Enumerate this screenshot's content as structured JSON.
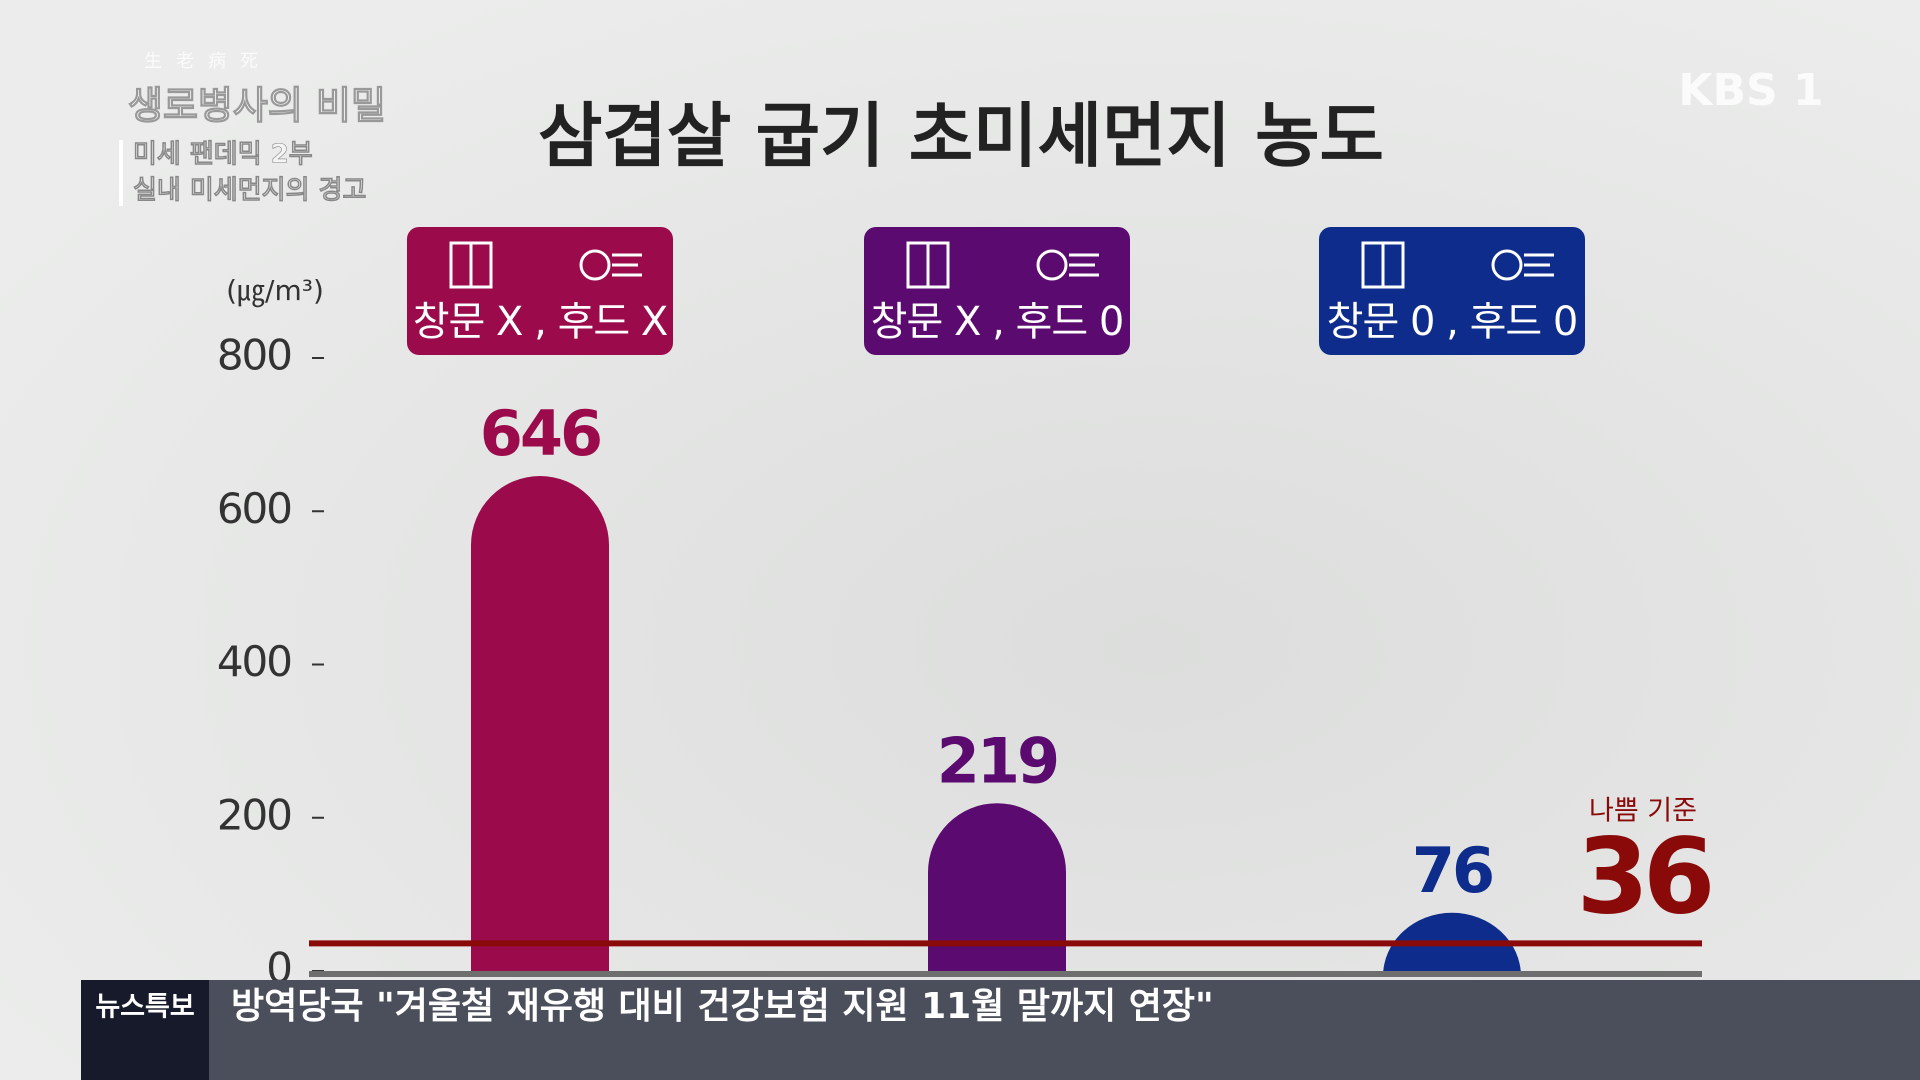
{
  "broadcast": {
    "logo": "KBS 1",
    "program_hanja": "生老病死",
    "program": "생로병사의 비밀",
    "episode": "미세 팬데믹 2부",
    "episode_title": "실내 미세먼지의 경고",
    "ticker_tag": "뉴스특보",
    "ticker_text": "방역당국 \"겨울철 재유행 대비 건강보험 지원 11월 말까지 연장\""
  },
  "chart_data": {
    "type": "bar",
    "title": "삼겹살 굽기 초미세먼지 농도",
    "y_unit": "(㎍/m³)",
    "categories": [
      "창문 X , 후드 X",
      "창문 X , 후드 0",
      "창문 0 , 후드 0"
    ],
    "values": [
      646,
      219,
      76
    ],
    "colors": [
      "#9b0b4c",
      "#5b0a6f",
      "#0e2c8c"
    ],
    "ylim": [
      0,
      800
    ],
    "yticks": [
      0,
      200,
      400,
      600,
      800
    ],
    "reference": {
      "label": "나쁨 기준",
      "value": 36,
      "color": "#8a0a0a"
    }
  }
}
